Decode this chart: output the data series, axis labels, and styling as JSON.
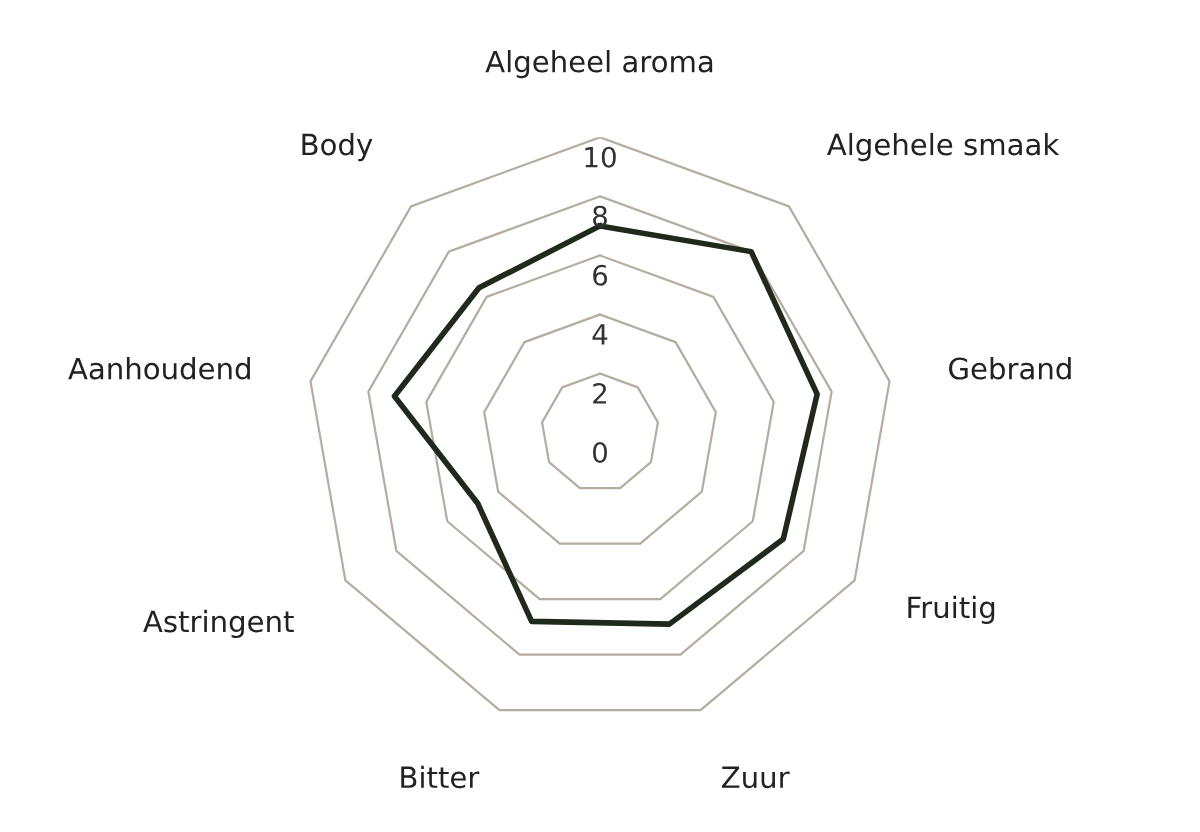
{
  "chart_data": {
    "type": "radar",
    "categories": [
      "Algeheel aroma",
      "Algehele smaak",
      "Gebrand",
      "Fruitig",
      "Zuur",
      "Bitter",
      "Astringent",
      "Aanhoudend",
      "Body"
    ],
    "series": [
      {
        "color": "#1f2a1c",
        "values": [
          7.0,
          8.0,
          7.5,
          7.2,
          6.9,
          6.8,
          4.8,
          7.1,
          6.4
        ]
      }
    ],
    "ylim": [
      0,
      10
    ],
    "yticks": [
      0,
      2,
      4,
      6,
      8,
      10
    ],
    "grid": true
  }
}
